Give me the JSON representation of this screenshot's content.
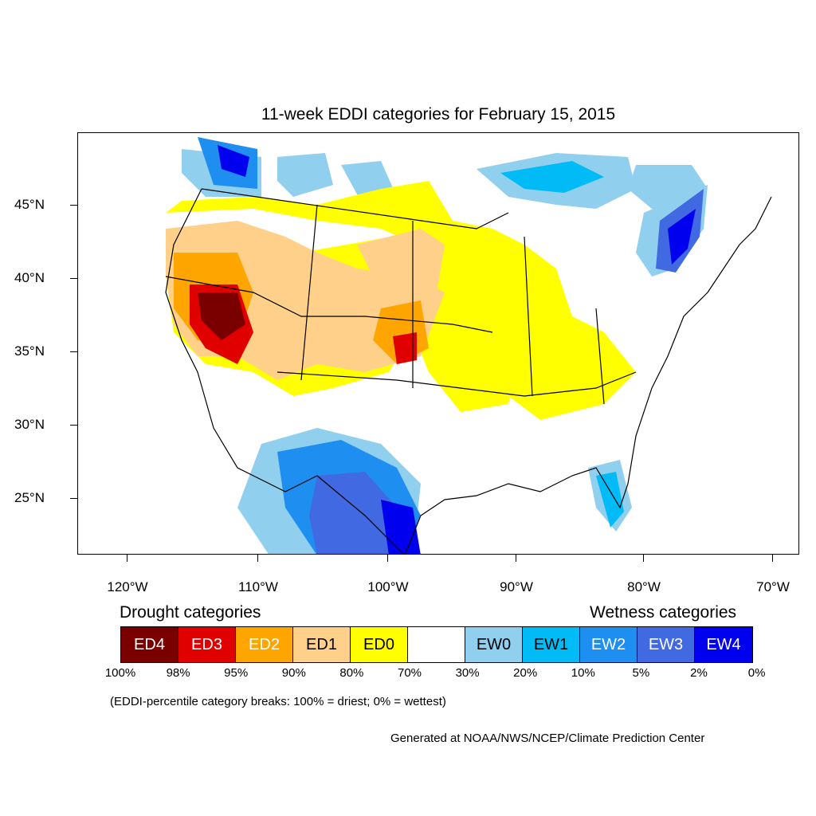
{
  "title": "11-week EDDI categories for February 15, 2015",
  "axes": {
    "y_labels": [
      "45°N",
      "40°N",
      "35°N",
      "30°N",
      "25°N"
    ],
    "x_labels": [
      "120°W",
      "110°W",
      "100°W",
      "90°W",
      "80°W",
      "70°W"
    ]
  },
  "legend": {
    "drought_heading": "Drought categories",
    "wetness_heading": "Wetness categories",
    "categories": [
      {
        "label": "ED4",
        "color": "#7a0000",
        "text_color": "#ffffff"
      },
      {
        "label": "ED3",
        "color": "#e00000",
        "text_color": "#ffffff"
      },
      {
        "label": "ED2",
        "color": "#ffa500",
        "text_color": "#ffffff"
      },
      {
        "label": "ED1",
        "color": "#ffd08a",
        "text_color": "#000000"
      },
      {
        "label": "ED0",
        "color": "#ffff00",
        "text_color": "#000000"
      },
      {
        "label": "",
        "color": "#ffffff",
        "text_color": "#000000"
      },
      {
        "label": "EW0",
        "color": "#90cfee",
        "text_color": "#000000"
      },
      {
        "label": "EW1",
        "color": "#00bbf5",
        "text_color": "#000000"
      },
      {
        "label": "EW2",
        "color": "#1e8ff0",
        "text_color": "#ffffff"
      },
      {
        "label": "EW3",
        "color": "#4169e1",
        "text_color": "#ffffff"
      },
      {
        "label": "EW4",
        "color": "#0000ee",
        "text_color": "#ffffff"
      }
    ],
    "percentiles": [
      "100%",
      "98%",
      "95%",
      "90%",
      "80%",
      "70%",
      "30%",
      "20%",
      "10%",
      "5%",
      "2%",
      "0%"
    ]
  },
  "note": "(EDDI-percentile category breaks: 100% = driest; 0% = wettest)",
  "credit": "Generated at NOAA/NWS/NCEP/Climate Prediction Center"
}
